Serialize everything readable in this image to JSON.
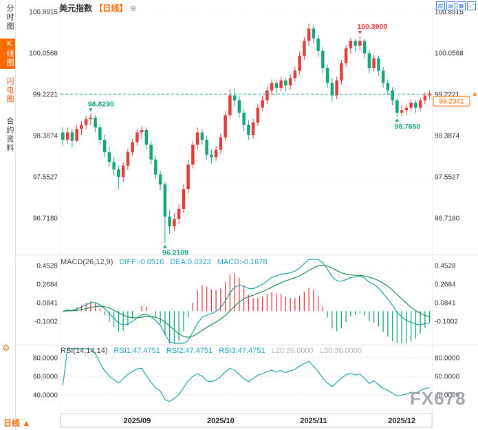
{
  "header": {
    "title": "美元指数",
    "period": "【日线】",
    "plus": "⊕",
    "toolbar": [
      {
        "name": "candlestick-view",
        "glyph": "▥"
      },
      {
        "name": "bar-view",
        "glyph": "▤"
      },
      {
        "name": "line-view",
        "glyph": "▦"
      },
      {
        "name": "fullscreen",
        "glyph": "⤢"
      }
    ]
  },
  "sidebar": {
    "tabs": [
      {
        "label": "分时图",
        "selected": false
      },
      {
        "label": "K线图",
        "selected": true
      },
      {
        "label": "闪电图",
        "selected": false
      },
      {
        "label": "合约资料",
        "selected": false
      }
    ],
    "gear": "⚙"
  },
  "indicators": {
    "macd": {
      "title": "MACD(26,12,9)",
      "diff": "DIFF:-0.0516",
      "dea": "DEA:0.0323",
      "macd": "MACD:-0.1678"
    },
    "rsi": {
      "title": "RSI(14,14,14)",
      "rsi1": "RSI1:47.4751",
      "rsi2": "RSI2:47.4751",
      "rsi3": "RSI3:47.4751",
      "l20": "L20:20.0000",
      "l30": "L30:30.0000"
    }
  },
  "footer": {
    "period": "日线",
    "arrow": "▲"
  },
  "watermark": "FX678",
  "colors": {
    "up": "#e23b3b",
    "down": "#14a57c",
    "accent": "#ff6a00",
    "dashed": "#1fa39b",
    "diff_line": "#17a2a2",
    "dea_line": "#1d8a52",
    "rsi_line": "#24a3a8",
    "grid": "#ececec",
    "axis_text": "#333333"
  },
  "chart_data": [
    {
      "type": "candlestick",
      "title": "美元指数 日线",
      "y_ticks": [
        100.8915,
        100.0568,
        99.2221,
        98.3874,
        97.5527,
        96.718
      ],
      "ylim": [
        96.1,
        101.02
      ],
      "dashed_line": 99.2221,
      "current_price": 99.2341,
      "x_labels": [
        {
          "text": "2025/09",
          "index": 16
        },
        {
          "text": "2025/10",
          "index": 34
        },
        {
          "text": "2025/11",
          "index": 54
        },
        {
          "text": "2025/12",
          "index": 73
        }
      ],
      "annotations": [
        {
          "index": 6,
          "price": 98.829,
          "text": "98.8290",
          "color": "#14a57c",
          "side": "above"
        },
        {
          "index": 64,
          "price": 100.39,
          "text": "100.3900",
          "color": "#e23b3b",
          "side": "above"
        },
        {
          "index": 72,
          "price": 98.765,
          "text": "98.7650",
          "color": "#14a57c",
          "side": "below"
        },
        {
          "index": 22,
          "price": 96.2109,
          "text": "96.2109",
          "color": "#14a57c",
          "side": "below"
        }
      ],
      "candles": [
        [
          98.45,
          98.55,
          98.18,
          98.3
        ],
        [
          98.3,
          98.55,
          98.22,
          98.45
        ],
        [
          98.45,
          98.52,
          98.15,
          98.28
        ],
        [
          98.28,
          98.6,
          98.25,
          98.52
        ],
        [
          98.52,
          98.68,
          98.4,
          98.6
        ],
        [
          98.6,
          98.78,
          98.52,
          98.72
        ],
        [
          98.72,
          98.829,
          98.6,
          98.75
        ],
        [
          98.75,
          98.8,
          98.45,
          98.55
        ],
        [
          98.55,
          98.62,
          98.2,
          98.3
        ],
        [
          98.3,
          98.4,
          97.95,
          98.05
        ],
        [
          98.05,
          98.15,
          97.75,
          97.85
        ],
        [
          97.85,
          97.95,
          97.58,
          97.7
        ],
        [
          97.7,
          97.78,
          97.3,
          97.55
        ],
        [
          97.55,
          97.85,
          97.45,
          97.78
        ],
        [
          97.78,
          98.12,
          97.7,
          98.05
        ],
        [
          98.05,
          98.32,
          97.98,
          98.25
        ],
        [
          98.25,
          98.52,
          98.18,
          98.45
        ],
        [
          98.45,
          98.58,
          98.32,
          98.5
        ],
        [
          98.5,
          98.55,
          98.1,
          98.2
        ],
        [
          98.2,
          98.28,
          97.8,
          97.9
        ],
        [
          97.9,
          97.98,
          97.5,
          97.6
        ],
        [
          97.6,
          97.68,
          97.28,
          97.4
        ],
        [
          97.4,
          97.45,
          96.2109,
          96.75
        ],
        [
          96.75,
          96.88,
          96.4,
          96.55
        ],
        [
          96.55,
          96.82,
          96.45,
          96.7
        ],
        [
          96.7,
          97.0,
          96.6,
          96.9
        ],
        [
          96.9,
          97.4,
          96.82,
          97.3
        ],
        [
          97.3,
          97.9,
          97.22,
          97.8
        ],
        [
          97.8,
          98.28,
          97.72,
          98.2
        ],
        [
          98.2,
          98.55,
          98.1,
          98.45
        ],
        [
          98.45,
          98.52,
          98.2,
          98.3
        ],
        [
          98.3,
          98.38,
          97.9,
          98.0
        ],
        [
          98.0,
          98.1,
          97.82,
          97.95
        ],
        [
          97.95,
          98.18,
          97.88,
          98.1
        ],
        [
          98.1,
          98.42,
          98.02,
          98.35
        ],
        [
          98.35,
          98.88,
          98.28,
          98.8
        ],
        [
          98.8,
          99.32,
          98.72,
          99.2
        ],
        [
          99.2,
          99.35,
          98.98,
          99.1
        ],
        [
          99.1,
          99.18,
          98.75,
          98.85
        ],
        [
          98.85,
          98.92,
          98.48,
          98.6
        ],
        [
          98.6,
          98.7,
          98.3,
          98.4
        ],
        [
          98.4,
          98.72,
          98.32,
          98.65
        ],
        [
          98.65,
          99.02,
          98.58,
          98.95
        ],
        [
          98.95,
          99.18,
          98.88,
          99.1
        ],
        [
          99.1,
          99.38,
          99.02,
          99.3
        ],
        [
          99.3,
          99.52,
          99.2,
          99.45
        ],
        [
          99.45,
          99.52,
          99.22,
          99.35
        ],
        [
          99.35,
          99.58,
          99.28,
          99.5
        ],
        [
          99.5,
          99.56,
          99.28,
          99.4
        ],
        [
          99.4,
          99.62,
          99.32,
          99.55
        ],
        [
          99.55,
          99.78,
          99.48,
          99.7
        ],
        [
          99.7,
          100.08,
          99.62,
          100.0
        ],
        [
          100.0,
          100.38,
          99.92,
          100.3
        ],
        [
          100.3,
          100.65,
          100.2,
          100.55
        ],
        [
          100.55,
          100.62,
          100.25,
          100.35
        ],
        [
          100.35,
          100.42,
          99.98,
          100.1
        ],
        [
          100.1,
          100.18,
          99.65,
          99.75
        ],
        [
          99.75,
          99.82,
          99.35,
          99.45
        ],
        [
          99.45,
          99.55,
          99.08,
          99.2
        ],
        [
          99.2,
          99.58,
          99.12,
          99.5
        ],
        [
          99.5,
          99.92,
          99.42,
          99.85
        ],
        [
          99.85,
          100.22,
          99.78,
          100.15
        ],
        [
          100.15,
          100.36,
          100.05,
          100.3
        ],
        [
          100.3,
          100.35,
          100.08,
          100.2
        ],
        [
          100.2,
          100.39,
          100.1,
          100.3
        ],
        [
          100.3,
          100.35,
          99.95,
          100.05
        ],
        [
          100.05,
          100.12,
          99.65,
          99.75
        ],
        [
          99.75,
          100.02,
          99.68,
          99.95
        ],
        [
          99.95,
          100.0,
          99.6,
          99.7
        ],
        [
          99.7,
          99.78,
          99.35,
          99.45
        ],
        [
          99.45,
          99.52,
          99.2,
          99.3
        ],
        [
          99.3,
          99.36,
          99.0,
          99.1
        ],
        [
          99.1,
          99.15,
          98.765,
          98.85
        ],
        [
          98.85,
          99.0,
          98.78,
          98.9
        ],
        [
          98.9,
          99.02,
          98.8,
          98.95
        ],
        [
          98.95,
          99.12,
          98.88,
          99.05
        ],
        [
          99.05,
          99.1,
          98.85,
          98.95
        ],
        [
          98.95,
          99.15,
          98.88,
          99.1
        ],
        [
          99.1,
          99.26,
          99.02,
          99.2
        ],
        [
          99.2,
          99.3,
          99.12,
          99.2341
        ]
      ]
    },
    {
      "type": "line+bar",
      "name": "MACD",
      "params": [
        26,
        12,
        9
      ],
      "y_ticks": [
        0.4528,
        0.2684,
        0.0841,
        -0.1002
      ],
      "last_values": {
        "diff": -0.0516,
        "dea": 0.0323,
        "macd": -0.1678
      }
    },
    {
      "type": "line",
      "name": "RSI",
      "params": [
        14,
        14,
        14
      ],
      "y_ticks": [
        80.0,
        60.0,
        40.0
      ],
      "levels": {
        "l20": 20.0,
        "l30": 30.0
      },
      "last_values": {
        "rsi1": 47.4751,
        "rsi2": 47.4751,
        "rsi3": 47.4751
      }
    }
  ]
}
